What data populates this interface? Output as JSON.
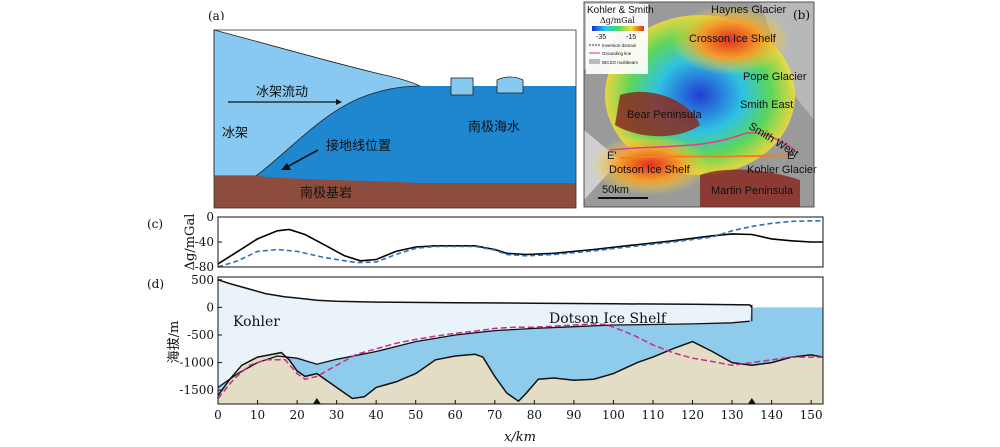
{
  "panels": {
    "a": {
      "label": "(a)",
      "texts": {
        "ice_shelf_flow": "冰架流动",
        "ice_shelf": "冰架",
        "ocean": "南极海水",
        "grounding_line": "接地线位置",
        "bedrock": "南极基岩"
      },
      "colors": {
        "ice": "#87c9f0",
        "ocean": "#1f86d0",
        "bedrock": "#8c4d3d"
      }
    },
    "b": {
      "label": "(b)",
      "title": "Kohler & Smith",
      "colorbar_label": "Δg/mGal",
      "colorbar_ticks": [
        "-35",
        "-15"
      ],
      "legend": [
        "Inversion domain",
        "Grounding line",
        "IBCSO multibeam"
      ],
      "place_labels": [
        "Haynes Glacier",
        "Crosson Ice Shelf",
        "Pope Glacier",
        "Smith East",
        "Smith West",
        "Bear Peninsula",
        "Dotson Ice Shelf",
        "Kohler Glacier",
        "Martin Peninsula"
      ],
      "profile_ends": [
        "E'",
        "E"
      ],
      "scale": "50km"
    }
  },
  "chart_data": [
    {
      "panel": "(c)",
      "type": "line",
      "ylabel": "Δg/mGal",
      "xlim": [
        0,
        153
      ],
      "ylim": [
        -80,
        0
      ],
      "yticks": [
        0,
        -40,
        -80
      ],
      "series": [
        {
          "style": "solid",
          "color": "#000000",
          "x": [
            0,
            5,
            10,
            15,
            18,
            22,
            27,
            32,
            36,
            40,
            45,
            50,
            55,
            60,
            65,
            70,
            73,
            78,
            85,
            95,
            105,
            115,
            125,
            130,
            135,
            140,
            145,
            150,
            153
          ],
          "y": [
            -75,
            -55,
            -35,
            -22,
            -20,
            -28,
            -45,
            -62,
            -70,
            -68,
            -55,
            -48,
            -46,
            -46,
            -46,
            -52,
            -58,
            -60,
            -58,
            -52,
            -45,
            -38,
            -30,
            -27,
            -28,
            -35,
            -38,
            -40,
            -40
          ]
        },
        {
          "style": "dashed",
          "color": "#2f6fb8",
          "x": [
            0,
            5,
            10,
            15,
            20,
            27,
            35,
            40,
            45,
            50,
            55,
            60,
            65,
            70,
            73,
            78,
            85,
            95,
            105,
            115,
            125,
            130,
            135,
            140,
            145,
            150,
            153
          ],
          "y": [
            -80,
            -70,
            -55,
            -52,
            -55,
            -65,
            -73,
            -72,
            -60,
            -50,
            -47,
            -47,
            -47,
            -53,
            -60,
            -62,
            -60,
            -54,
            -47,
            -40,
            -32,
            -22,
            -15,
            -10,
            -7,
            -6,
            -6
          ]
        }
      ]
    },
    {
      "panel": "(d)",
      "type": "area",
      "ylabel": "海拔/m",
      "xlabel": "x/km",
      "xlim": [
        0,
        153
      ],
      "ylim": [
        -1750,
        550
      ],
      "xticks": [
        0,
        10,
        20,
        30,
        40,
        50,
        60,
        70,
        80,
        90,
        100,
        110,
        120,
        130,
        140,
        150
      ],
      "yticks": [
        500,
        0,
        -500,
        -1000,
        -1500
      ],
      "annotations": [
        "Kohler",
        "Dotson Ice Shelf"
      ],
      "markers_x": [
        25,
        135
      ],
      "colors": {
        "ice": "#eaf3fa",
        "water": "#8fcceb",
        "bed": "#e3ddc5",
        "modeled_bed": "#cc2a8a"
      },
      "ice_surface": {
        "x": [
          0,
          3,
          8,
          12,
          17,
          20,
          25,
          30,
          40,
          60,
          80,
          100,
          120,
          134.5,
          135
        ],
        "y": [
          500,
          430,
          330,
          250,
          190,
          170,
          130,
          110,
          95,
          85,
          75,
          65,
          55,
          45,
          0
        ]
      },
      "ice_base": {
        "x": [
          0,
          5,
          10,
          15,
          20,
          25,
          30,
          40,
          50,
          60,
          70,
          80,
          90,
          100,
          110,
          120,
          130,
          134.5
        ],
        "y": [
          -1450,
          -1200,
          -1000,
          -880,
          -920,
          -1030,
          -940,
          -800,
          -620,
          -500,
          -420,
          -380,
          -350,
          -320,
          -310,
          -300,
          -280,
          -250
        ]
      },
      "observed_bed": {
        "x": [
          0,
          3,
          6,
          10,
          13,
          16,
          18,
          20,
          22,
          25,
          28,
          31,
          34,
          37,
          40,
          45,
          50,
          55,
          60,
          65,
          67,
          70,
          73,
          76,
          78,
          81,
          85,
          90,
          95,
          100,
          103,
          106,
          110,
          115,
          120,
          125,
          130,
          135,
          140,
          145,
          150,
          153
        ],
        "y": [
          -1600,
          -1300,
          -1050,
          -900,
          -860,
          -820,
          -950,
          -1150,
          -1250,
          -1200,
          -1350,
          -1500,
          -1650,
          -1620,
          -1450,
          -1350,
          -1200,
          -950,
          -880,
          -850,
          -900,
          -1250,
          -1550,
          -1700,
          -1550,
          -1300,
          -1280,
          -1320,
          -1300,
          -1200,
          -1100,
          -1000,
          -900,
          -750,
          -620,
          -800,
          -1000,
          -1050,
          -1000,
          -900,
          -860,
          -900
        ]
      },
      "modeled_bed": {
        "x": [
          0,
          4,
          8,
          12,
          17,
          20,
          22,
          25,
          30,
          35,
          40,
          45,
          50,
          55,
          60,
          65,
          70,
          75,
          80,
          85,
          90,
          95,
          98,
          100,
          105,
          110,
          115,
          120,
          125,
          130,
          135,
          140,
          145,
          153
        ],
        "y": [
          -1650,
          -1300,
          -1050,
          -950,
          -950,
          -1200,
          -1300,
          -1250,
          -1050,
          -850,
          -750,
          -650,
          -580,
          -520,
          -470,
          -430,
          -380,
          -360,
          -360,
          -340,
          -320,
          -300,
          -310,
          -360,
          -500,
          -680,
          -820,
          -920,
          -980,
          -1050,
          -1000,
          -950,
          -900,
          -900
        ]
      }
    }
  ]
}
